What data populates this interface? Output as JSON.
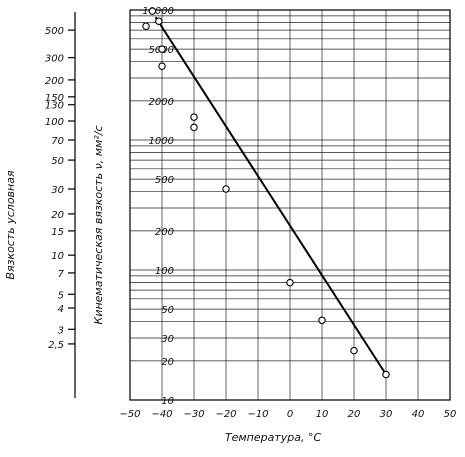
{
  "chart_data": {
    "type": "scatter",
    "xlabel": "Температура, °C",
    "ylabel_outer": "Вязкость условная",
    "ylabel_inner": "Кинематическая вязкость ν, мм²/с",
    "xlim": [
      -50,
      50
    ],
    "ylim": [
      10,
      10000
    ],
    "yscale": "log",
    "grid": true,
    "x_ticks": [
      "−50",
      "−40",
      "−30",
      "−20",
      "−10",
      "0",
      "10",
      "20",
      "30",
      "40",
      "50"
    ],
    "kinematic_ticks": [
      {
        "label": "10000",
        "value": 10000
      },
      {
        "label": "5000",
        "value": 5000
      },
      {
        "label": "2000",
        "value": 2000
      },
      {
        "label": "1000",
        "value": 1000
      },
      {
        "label": "500",
        "value": 500
      },
      {
        "label": "200",
        "value": 200
      },
      {
        "label": "100",
        "value": 100
      },
      {
        "label": "50",
        "value": 50
      },
      {
        "label": "30",
        "value": 30
      },
      {
        "label": "20",
        "value": 20
      },
      {
        "label": "10",
        "value": 10
      }
    ],
    "conditional_ticks": [
      {
        "label": "500",
        "value": 7000
      },
      {
        "label": "300",
        "value": 4300
      },
      {
        "label": "200",
        "value": 2900
      },
      {
        "label": "150",
        "value": 2150
      },
      {
        "label": "130",
        "value": 1870
      },
      {
        "label": "100",
        "value": 1400
      },
      {
        "label": "70",
        "value": 1000
      },
      {
        "label": "50",
        "value": 700
      },
      {
        "label": "30",
        "value": 420
      },
      {
        "label": "20",
        "value": 270
      },
      {
        "label": "15",
        "value": 200
      },
      {
        "label": "10",
        "value": 130
      },
      {
        "label": "7",
        "value": 95
      },
      {
        "label": "5",
        "value": 65
      },
      {
        "label": "4",
        "value": 51
      },
      {
        "label": "3",
        "value": 35
      },
      {
        "label": "2,5",
        "value": 27
      }
    ],
    "series": [
      {
        "points": [
          {
            "x": -45,
            "y": 7500
          },
          {
            "x": -43,
            "y": 9800
          },
          {
            "x": -41,
            "y": 8200
          },
          {
            "x": -40,
            "y": 5000
          },
          {
            "x": -40,
            "y": 3700
          },
          {
            "x": -30,
            "y": 1500
          },
          {
            "x": -30,
            "y": 1250
          },
          {
            "x": -20,
            "y": 420
          },
          {
            "x": 0,
            "y": 80
          },
          {
            "x": 10,
            "y": 41
          },
          {
            "x": 20,
            "y": 24
          },
          {
            "x": 30,
            "y": 15.7
          }
        ]
      }
    ],
    "fit_line": {
      "x": [
        -42,
        30
      ],
      "y": [
        8800,
        15.7
      ]
    }
  }
}
